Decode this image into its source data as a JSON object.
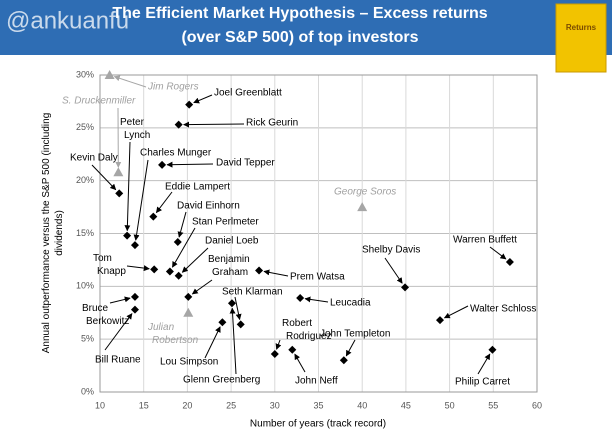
{
  "watermark": "@ankuanfu",
  "book_cover_title": "Returns",
  "chart_data": {
    "type": "scatter",
    "title": "The Efficient Market Hypothesis – Excess returns",
    "subtitle": "(over S&P 500) of  top investors",
    "x_label": "Number of years (track record)",
    "y_label": "Annual outperformance versus the S&P 500 (including dividends)",
    "xlim": [
      10,
      60
    ],
    "xticks": [
      10,
      15,
      20,
      25,
      30,
      35,
      40,
      45,
      50,
      55,
      60
    ],
    "ylim": [
      0,
      30
    ],
    "yticks": [
      {
        "value": 0,
        "label": "0%"
      },
      {
        "value": 5,
        "label": "5%"
      },
      {
        "value": 10,
        "label": "10%"
      },
      {
        "value": 15,
        "label": "15%"
      },
      {
        "value": 20,
        "label": "20%"
      },
      {
        "value": 25,
        "label": "25%"
      },
      {
        "value": 30,
        "label": "30%"
      }
    ],
    "grid": true,
    "colors": {
      "diamond": "#000000",
      "triangle": "#a6a6a6"
    },
    "points": [
      {
        "label": "Jim Rogers",
        "x": 11.1,
        "y": 30,
        "marker": "triangle"
      },
      {
        "label": "S. Druckenmiller",
        "x": 12.1,
        "y": 20.8,
        "marker": "triangle"
      },
      {
        "label": "Joel Greenblatt",
        "x": 20.2,
        "y": 27.2,
        "marker": "diamond"
      },
      {
        "label": "Rick Geurin",
        "x": 19.0,
        "y": 25.3,
        "marker": "diamond"
      },
      {
        "label": "Peter Lynch",
        "x": 13.1,
        "y": 14.8,
        "marker": "diamond"
      },
      {
        "label": "Charles Munger",
        "x": 14.0,
        "y": 13.9,
        "marker": "diamond"
      },
      {
        "label": "Kevin Daly",
        "x": 12.2,
        "y": 18.8,
        "marker": "diamond"
      },
      {
        "label": "David Tepper",
        "x": 17.1,
        "y": 21.5,
        "marker": "diamond"
      },
      {
        "label": "Eddie Lampert",
        "x": 16.1,
        "y": 16.6,
        "marker": "diamond"
      },
      {
        "label": "David Einhorn",
        "x": 18.9,
        "y": 14.2,
        "marker": "diamond"
      },
      {
        "label": "Stan Perlmeter",
        "x": 18.0,
        "y": 11.4,
        "marker": "diamond"
      },
      {
        "label": "Daniel Loeb",
        "x": 19.0,
        "y": 11.0,
        "marker": "diamond"
      },
      {
        "label": "Tom Knapp",
        "x": 16.2,
        "y": 11.6,
        "marker": "diamond"
      },
      {
        "label": "Benjamin Graham",
        "x": 20.1,
        "y": 9.0,
        "marker": "diamond"
      },
      {
        "label": "Prem Watsa",
        "x": 28.2,
        "y": 11.5,
        "marker": "diamond"
      },
      {
        "label": "Bruce Berkowitz",
        "x": 14.0,
        "y": 9.0,
        "marker": "diamond"
      },
      {
        "label": "Bill Ruane",
        "x": 14.0,
        "y": 7.8,
        "marker": "diamond"
      },
      {
        "label": "Julian Robertson",
        "x": 20.1,
        "y": 7.5,
        "marker": "triangle"
      },
      {
        "label": "Seth Klarman",
        "x": 26.1,
        "y": 6.4,
        "marker": "diamond"
      },
      {
        "label": "Lou Simpson",
        "x": 24.0,
        "y": 6.6,
        "marker": "diamond"
      },
      {
        "label": "Glenn Greenberg",
        "x": 25.1,
        "y": 8.4,
        "marker": "diamond"
      },
      {
        "label": "Leucadia",
        "x": 32.9,
        "y": 8.9,
        "marker": "diamond"
      },
      {
        "label": "Robert Rodriguez",
        "x": 30.0,
        "y": 3.6,
        "marker": "diamond"
      },
      {
        "label": "John Neff",
        "x": 32.0,
        "y": 4.0,
        "marker": "diamond"
      },
      {
        "label": "John Templeton",
        "x": 37.9,
        "y": 3.0,
        "marker": "diamond"
      },
      {
        "label": "George Soros",
        "x": 40.0,
        "y": 17.5,
        "marker": "triangle"
      },
      {
        "label": "Shelby Davis",
        "x": 44.9,
        "y": 9.9,
        "marker": "diamond"
      },
      {
        "label": "Warren Buffett",
        "x": 56.9,
        "y": 12.3,
        "marker": "diamond"
      },
      {
        "label": "Walter Schloss",
        "x": 48.9,
        "y": 6.8,
        "marker": "diamond"
      },
      {
        "label": "Philip Carret",
        "x": 54.9,
        "y": 4.0,
        "marker": "diamond"
      }
    ]
  }
}
